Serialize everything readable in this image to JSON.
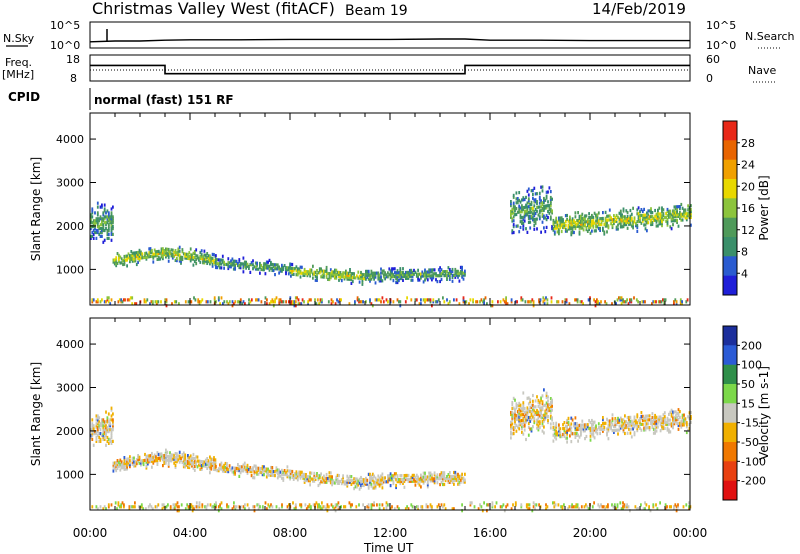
{
  "header": {
    "station": "Christmas Valley West (fitACF)",
    "beam": "Beam 19",
    "date": "14/Feb/2019"
  },
  "strip_labels": {
    "nsky": "N.Sky",
    "nsky_top": "10^5",
    "nsky_bottom": "10^0",
    "nsearch": "N.Search",
    "nsearch_top": "10^5",
    "nsearch_bottom": "10^0",
    "freq_line1": "Freq.",
    "freq_line2": "[MHz]",
    "freq_top": "18",
    "freq_bottom": "8",
    "nave": "Nave",
    "nave_top": "60",
    "nave_bottom": "0",
    "cpid": "CPID",
    "cpid_value": "normal (fast) 151 RF"
  },
  "x_axis": {
    "title": "Time UT",
    "ticks": [
      "00:00",
      "04:00",
      "08:00",
      "12:00",
      "16:00",
      "20:00",
      "00:00"
    ]
  },
  "colors": {
    "power": [
      "#1f1fd8",
      "#2a5bd0",
      "#3a8f6a",
      "#4f9a5a",
      "#8cc43c",
      "#e8d800",
      "#f0a000",
      "#e86400",
      "#e82818"
    ],
    "velocity": [
      "#1c2f9c",
      "#2b5bd6",
      "#2f8f4a",
      "#7cd84a",
      "#c8c8c0",
      "#f0b000",
      "#f07800",
      "#e84010",
      "#e01010"
    ]
  },
  "chart_data": [
    {
      "type": "line",
      "name": "N.Sky / N.Search",
      "x": [
        "00:00",
        "01:00",
        "02:00",
        "03:00",
        "04:00",
        "06:00",
        "08:00",
        "10:00",
        "12:00",
        "14:00",
        "15:00",
        "16:00",
        "18:00",
        "20:00",
        "22:00",
        "24:00"
      ],
      "values": [
        1.3,
        1.5,
        1.5,
        1.7,
        1.8,
        1.8,
        1.9,
        1.9,
        1.9,
        2.0,
        2.0,
        1.7,
        1.7,
        1.6,
        1.6,
        1.6
      ],
      "ylim_label": [
        "10^0",
        "10^5"
      ]
    },
    {
      "type": "line",
      "name": "Freq.",
      "x": [
        "00:00",
        "03:00",
        "03:00",
        "15:00",
        "15:00",
        "24:00"
      ],
      "values": [
        14.0,
        14.0,
        10.8,
        10.8,
        14.0,
        14.0
      ],
      "ylim": [
        8,
        18
      ]
    },
    {
      "type": "heatmap",
      "title": "Power [dB]",
      "ylabel": "Slant Range [km]",
      "xlabel": "Time UT",
      "yticks": [
        1000,
        2000,
        3000,
        4000
      ],
      "ylim": [
        180,
        4600
      ],
      "colorbar_ticks": [
        4,
        8,
        12,
        16,
        20,
        24,
        28
      ],
      "colorbar_label": "Power [dB]"
    },
    {
      "type": "heatmap",
      "title": "Velocity [m s^-1]",
      "ylabel": "Slant Range [km]",
      "xlabel": "Time UT",
      "yticks": [
        1000,
        2000,
        3000,
        4000
      ],
      "ylim": [
        180,
        4600
      ],
      "colorbar_ticks": [
        200,
        100,
        50,
        15,
        -15,
        -50,
        -100,
        -200
      ],
      "colorbar_label": "Velocity [m s-1]"
    }
  ]
}
